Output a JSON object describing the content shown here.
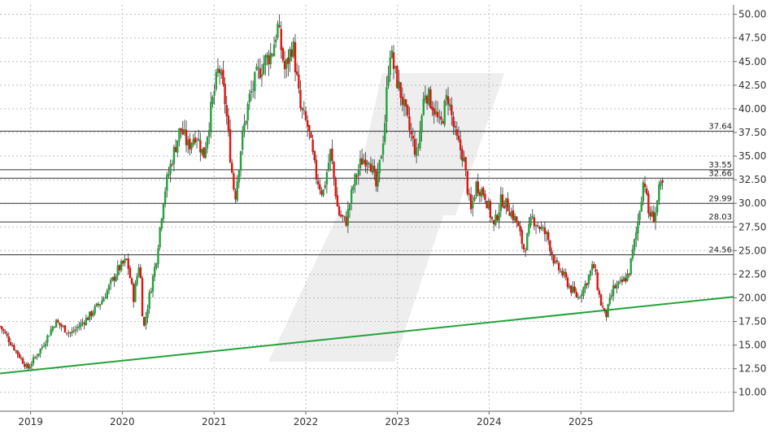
{
  "chart_data": {
    "type": "candlestick",
    "title": "",
    "xlabel": "",
    "ylabel": "",
    "grid": true,
    "ylim": [
      8,
      51
    ],
    "xlim": [
      "2018-09-01",
      "2026-09-01"
    ],
    "x_ticks": [
      {
        "label": "2019",
        "date": "2019-01-01"
      },
      {
        "label": "2020",
        "date": "2020-01-01"
      },
      {
        "label": "2021",
        "date": "2021-01-01"
      },
      {
        "label": "2022",
        "date": "2022-01-01"
      },
      {
        "label": "2023",
        "date": "2023-01-01"
      },
      {
        "label": "2024",
        "date": "2024-01-01"
      },
      {
        "label": "2025",
        "date": "2025-01-01"
      }
    ],
    "y_ticks": [
      "10.00",
      "12.50",
      "15.00",
      "17.50",
      "20.00",
      "22.50",
      "25.00",
      "27.50",
      "30.00",
      "32.50",
      "35.00",
      "37.50",
      "40.00",
      "42.50",
      "45.00",
      "47.50",
      "50.00"
    ],
    "horizontal_levels": [
      {
        "value": 37.64,
        "label": "37.64"
      },
      {
        "value": 33.55,
        "label": "33.55"
      },
      {
        "value": 32.66,
        "label": "32.66"
      },
      {
        "value": 29.99,
        "label": "29.99"
      },
      {
        "value": 28.03,
        "label": "28.03"
      },
      {
        "value": 24.56,
        "label": "24.56"
      }
    ],
    "trendline": {
      "color": "#22a33a",
      "points": [
        {
          "date": "2018-09-01",
          "value": 12.0
        },
        {
          "date": "2026-09-01",
          "value": 20.1
        }
      ]
    },
    "up_color": "#22a33a",
    "down_color": "#e3120b",
    "series": [
      {
        "kind": "approx_close_path",
        "values": [
          [
            "2018-09-01",
            17.0
          ],
          [
            "2018-10-20",
            15.0
          ],
          [
            "2018-12-20",
            12.5
          ],
          [
            "2019-02-15",
            14.8
          ],
          [
            "2019-04-10",
            17.5
          ],
          [
            "2019-06-10",
            16.2
          ],
          [
            "2019-08-20",
            18.0
          ],
          [
            "2019-10-15",
            19.8
          ],
          [
            "2019-12-15",
            23.0
          ],
          [
            "2020-01-20",
            24.0
          ],
          [
            "2020-02-15",
            20.0
          ],
          [
            "2020-03-10",
            24.0
          ],
          [
            "2020-03-25",
            16.5
          ],
          [
            "2020-04-20",
            20.5
          ],
          [
            "2020-05-15",
            24.0
          ],
          [
            "2020-06-15",
            31.0
          ],
          [
            "2020-07-20",
            35.0
          ],
          [
            "2020-08-20",
            38.0
          ],
          [
            "2020-09-20",
            36.0
          ],
          [
            "2020-10-20",
            37.5
          ],
          [
            "2020-11-20",
            35.0
          ],
          [
            "2020-12-20",
            40.0
          ],
          [
            "2021-01-20",
            44.5
          ],
          [
            "2021-02-15",
            40.5
          ],
          [
            "2021-03-10",
            34.0
          ],
          [
            "2021-03-25",
            30.5
          ],
          [
            "2021-04-20",
            36.5
          ],
          [
            "2021-05-20",
            41.0
          ],
          [
            "2021-06-20",
            43.5
          ],
          [
            "2021-07-20",
            45.0
          ],
          [
            "2021-08-20",
            46.0
          ],
          [
            "2021-09-10",
            48.8
          ],
          [
            "2021-10-10",
            44.0
          ],
          [
            "2021-11-10",
            47.0
          ],
          [
            "2021-12-10",
            40.0
          ],
          [
            "2022-01-10",
            38.0
          ],
          [
            "2022-02-10",
            33.0
          ],
          [
            "2022-03-10",
            31.0
          ],
          [
            "2022-04-10",
            35.5
          ],
          [
            "2022-05-10",
            29.0
          ],
          [
            "2022-06-10",
            28.0
          ],
          [
            "2022-07-10",
            32.0
          ],
          [
            "2022-08-10",
            34.5
          ],
          [
            "2022-09-10",
            35.0
          ],
          [
            "2022-10-10",
            31.5
          ],
          [
            "2022-11-10",
            38.0
          ],
          [
            "2022-12-01",
            46.5
          ],
          [
            "2022-12-20",
            44.0
          ],
          [
            "2023-01-20",
            41.0
          ],
          [
            "2023-02-20",
            37.5
          ],
          [
            "2023-03-20",
            35.0
          ],
          [
            "2023-04-20",
            42.0
          ],
          [
            "2023-05-20",
            40.5
          ],
          [
            "2023-06-20",
            38.0
          ],
          [
            "2023-07-20",
            41.5
          ],
          [
            "2023-08-20",
            37.0
          ],
          [
            "2023-09-20",
            35.0
          ],
          [
            "2023-10-20",
            29.0
          ],
          [
            "2023-11-10",
            32.0
          ],
          [
            "2023-12-15",
            31.0
          ],
          [
            "2024-01-20",
            27.5
          ],
          [
            "2024-02-20",
            30.5
          ],
          [
            "2024-03-20",
            29.5
          ],
          [
            "2024-04-20",
            28.0
          ],
          [
            "2024-05-20",
            25.0
          ],
          [
            "2024-06-20",
            28.5
          ],
          [
            "2024-07-20",
            27.5
          ],
          [
            "2024-08-20",
            26.5
          ],
          [
            "2024-09-20",
            23.5
          ],
          [
            "2024-10-20",
            22.5
          ],
          [
            "2024-11-20",
            21.0
          ],
          [
            "2024-12-20",
            20.0
          ],
          [
            "2025-01-20",
            21.5
          ],
          [
            "2025-02-20",
            23.5
          ],
          [
            "2025-03-20",
            19.5
          ],
          [
            "2025-04-10",
            18.0
          ],
          [
            "2025-05-10",
            21.0
          ],
          [
            "2025-06-10",
            21.5
          ],
          [
            "2025-07-10",
            22.5
          ],
          [
            "2025-08-10",
            27.0
          ],
          [
            "2025-09-10",
            33.0
          ],
          [
            "2025-09-25",
            29.0
          ],
          [
            "2025-10-20",
            28.5
          ],
          [
            "2025-11-10",
            31.5
          ],
          [
            "2025-11-25",
            32.0
          ]
        ]
      }
    ]
  }
}
